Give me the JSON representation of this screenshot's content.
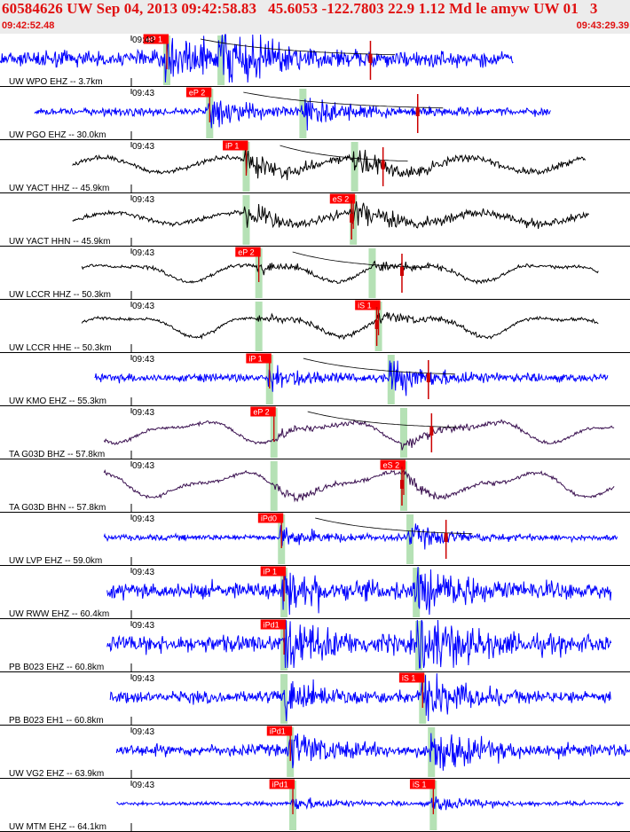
{
  "header": {
    "title": "60584626 UW Sep 04, 2013 09:42:58.83   45.6053 -122.7803 22.9 1.12 Md le amyw UW 01   3",
    "start_time": "09:42:52.48",
    "end_time": "09:43:29.39"
  },
  "colors": {
    "header_bg": "#ececec",
    "header_text": "#e01010",
    "pick_box": "#ff0000",
    "pick_text": "#ffffff",
    "phase_band": "#a8dca8",
    "blue_trace": "#0000ff",
    "black_trace": "#000000",
    "purple_trace": "#3a1050"
  },
  "traces": [
    {
      "label": "UW WPO EHZ -- 3.7km",
      "time_tick": "09:43",
      "color": "blue",
      "style": "hf",
      "amp": 8,
      "trace_start": 0.0,
      "trace_end": 0.815,
      "p_pick": "eP 1",
      "p_time": 0.262,
      "s_pick": "",
      "s_time": 0.348,
      "red_mark": 0.588,
      "decay_curve": true
    },
    {
      "label": "UW PGO EHZ -- 30.0km",
      "time_tick": "09:43",
      "color": "blue",
      "style": "hf",
      "amp": 4,
      "trace_start": 0.055,
      "trace_end": 0.875,
      "p_pick": "eP 2",
      "p_time": 0.33,
      "s_pick": "",
      "s_time": 0.478,
      "red_mark": 0.663,
      "decay_curve": true
    },
    {
      "label": "UW YACT HHZ -- 45.9km",
      "time_tick": "09:43",
      "color": "black",
      "style": "wave",
      "amp": 9,
      "trace_start": 0.115,
      "trace_end": 0.93,
      "p_pick": "iP 1",
      "p_time": 0.388,
      "s_pick": "",
      "s_time": 0.56,
      "red_mark": 0.608,
      "decay_curve": true
    },
    {
      "label": "UW YACT HHN -- 45.9km",
      "time_tick": "09:43",
      "color": "black",
      "style": "wave",
      "amp": 7,
      "trace_start": 0.115,
      "trace_end": 0.935,
      "p_pick": "",
      "p_time": 0.388,
      "s_pick": "eS 2",
      "s_time": 0.558,
      "red_mark": 0.558,
      "decay_curve": false
    },
    {
      "label": "UW LCCR HHZ -- 50.3km",
      "time_tick": "09:43",
      "color": "black",
      "style": "lp",
      "amp": 12,
      "trace_start": 0.13,
      "trace_end": 0.95,
      "p_pick": "eP 2",
      "p_time": 0.408,
      "s_pick": "",
      "s_time": 0.588,
      "red_mark": 0.638,
      "decay_curve": true
    },
    {
      "label": "UW LCCR HHE -- 50.3km",
      "time_tick": "09:43",
      "color": "black",
      "style": "lp",
      "amp": 14,
      "trace_start": 0.13,
      "trace_end": 0.95,
      "p_pick": "",
      "p_time": 0.408,
      "s_pick": "iS 1",
      "s_time": 0.598,
      "red_mark": 0.598,
      "decay_curve": false
    },
    {
      "label": "UW KMO EHZ -- 55.3km",
      "time_tick": "09:43",
      "color": "blue",
      "style": "hf",
      "amp": 4,
      "trace_start": 0.15,
      "trace_end": 0.965,
      "p_pick": "iP 1",
      "p_time": 0.425,
      "s_pick": "",
      "s_time": 0.618,
      "red_mark": 0.68,
      "decay_curve": true
    },
    {
      "label": "TA G03D BHZ -- 57.8km",
      "time_tick": "09:43",
      "color": "purple",
      "style": "lp",
      "amp": 14,
      "trace_start": 0.165,
      "trace_end": 0.975,
      "p_pick": "eP 2",
      "p_time": 0.432,
      "s_pick": "",
      "s_time": 0.638,
      "red_mark": 0.685,
      "decay_curve": true
    },
    {
      "label": "TA G03D BHN -- 57.8km",
      "time_tick": "09:43",
      "color": "purple",
      "style": "lp",
      "amp": 16,
      "trace_start": 0.165,
      "trace_end": 0.975,
      "p_pick": "",
      "p_time": 0.432,
      "s_pick": "eS 2",
      "s_time": 0.638,
      "red_mark": 0.638,
      "decay_curve": false
    },
    {
      "label": "UW LVP EHZ -- 59.0km",
      "time_tick": "09:43",
      "color": "blue",
      "style": "hf",
      "amp": 3,
      "trace_start": 0.165,
      "trace_end": 0.98,
      "p_pick": "iPd0",
      "p_time": 0.444,
      "s_pick": "",
      "s_time": 0.648,
      "red_mark": 0.708,
      "decay_curve": true
    },
    {
      "label": "UW RWW EHZ -- 60.4km",
      "time_tick": "09:43",
      "color": "blue",
      "style": "hf",
      "amp": 8,
      "trace_start": 0.17,
      "trace_end": 0.97,
      "p_pick": "iP 1",
      "p_time": 0.448,
      "s_pick": "",
      "s_time": 0.658,
      "red_mark": -1,
      "decay_curve": false
    },
    {
      "label": "PB B023 EHZ -- 60.8km",
      "time_tick": "09:43",
      "color": "blue",
      "style": "hf",
      "amp": 9,
      "trace_start": 0.17,
      "trace_end": 0.97,
      "p_pick": "iPd1",
      "p_time": 0.448,
      "s_pick": "",
      "s_time": 0.662,
      "red_mark": -1,
      "decay_curve": false
    },
    {
      "label": "PB B023 EH1 -- 60.8km",
      "time_tick": "09:43",
      "color": "blue",
      "style": "hf",
      "amp": 6,
      "trace_start": 0.175,
      "trace_end": 0.97,
      "p_pick": "",
      "p_time": 0.448,
      "s_pick": "iS 1",
      "s_time": 0.668,
      "red_mark": -1,
      "decay_curve": false
    },
    {
      "label": "UW VG2 EHZ -- 63.9km",
      "time_tick": "09:43",
      "color": "blue",
      "style": "hf",
      "amp": 6,
      "trace_start": 0.185,
      "trace_end": 1.0,
      "p_pick": "iPd1",
      "p_time": 0.458,
      "s_pick": "",
      "s_time": 0.682,
      "red_mark": -1,
      "decay_curve": false
    },
    {
      "label": "UW MTM EHZ -- 64.1km",
      "time_tick": "09:43",
      "color": "blue",
      "style": "hf",
      "amp": 2,
      "trace_start": 0.185,
      "trace_end": 0.99,
      "p_pick": "iPd1",
      "p_time": 0.462,
      "s_pick": "iS 1",
      "s_time": 0.685,
      "red_mark": -1,
      "decay_curve": false
    }
  ]
}
